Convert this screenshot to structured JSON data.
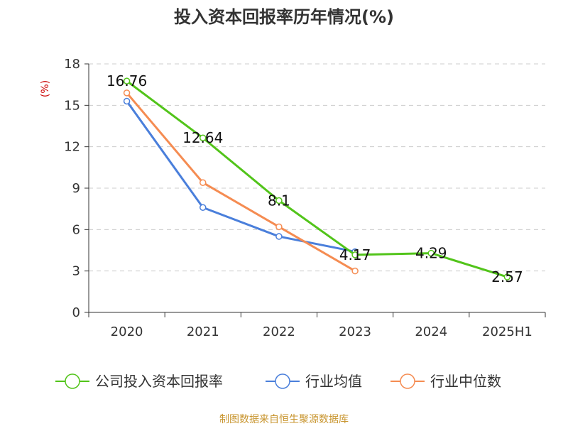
{
  "title": "投入资本回报率历年情况(%)",
  "source": "制图数据来自恒生聚源数据库",
  "chart_data": {
    "type": "line",
    "title": "投入资本回报率历年情况(%)",
    "ylabel": "(%)",
    "xlabel": "",
    "categories": [
      "2020",
      "2021",
      "2022",
      "2023",
      "2024",
      "2025H1"
    ],
    "ylim": [
      0,
      18
    ],
    "yticks": [
      0,
      3,
      6,
      9,
      12,
      15,
      18
    ],
    "grid": true,
    "legend_position": "bottom",
    "series": [
      {
        "name": "公司投入资本回报率",
        "color": "#52c41a",
        "values": [
          16.76,
          12.64,
          8.1,
          4.17,
          4.29,
          2.57
        ],
        "labels": [
          "16.76",
          "12.64",
          "8.1",
          "4.17",
          "4.29",
          "2.57"
        ]
      },
      {
        "name": "行业均值",
        "color": "#4a7fdb",
        "values": [
          15.3,
          7.6,
          5.5,
          4.4,
          null,
          null
        ]
      },
      {
        "name": "行业中位数",
        "color": "#f58c52",
        "values": [
          15.9,
          9.4,
          6.2,
          3.0,
          null,
          null
        ]
      }
    ]
  }
}
